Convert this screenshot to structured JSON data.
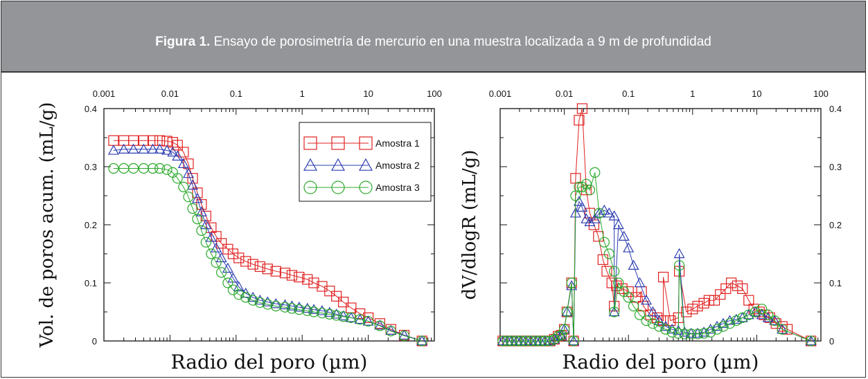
{
  "figure": {
    "caption_bold": "Figura 1.",
    "caption_text": " Ensayo de porosimetría de mercurio en una muestra localizada a 9 m de profundidad"
  },
  "colors": {
    "s1": "#e02020",
    "s2": "#2c3db0",
    "s3": "#2aa82a"
  },
  "chart_data": [
    {
      "type": "scatter",
      "xscale": "log",
      "xlim": [
        0.001,
        100
      ],
      "ylim": [
        0,
        0.4
      ],
      "x_ticks": [
        "0.001",
        "0.01",
        "0.1",
        "1",
        "10",
        "100"
      ],
      "y_ticks": [
        "0",
        "0.1",
        "0.2",
        "0.3",
        "0.4"
      ],
      "xlabel": "Radio del poro (µm)",
      "ylabel": "Vol. de poros acum. (mL/g)",
      "legend_position": "top-right",
      "series": [
        {
          "name": "Amostra 1",
          "marker": "square",
          "color": "#e02020",
          "x": [
            0.0014,
            0.002,
            0.0028,
            0.004,
            0.0055,
            0.007,
            0.009,
            0.011,
            0.013,
            0.016,
            0.019,
            0.022,
            0.026,
            0.03,
            0.035,
            0.042,
            0.05,
            0.06,
            0.075,
            0.09,
            0.11,
            0.14,
            0.18,
            0.23,
            0.3,
            0.4,
            0.55,
            0.7,
            0.9,
            1.2,
            1.5,
            2,
            2.6,
            3.3,
            4.2,
            5.5,
            7.5,
            10,
            15,
            22,
            35,
            65
          ],
          "y": [
            0.345,
            0.345,
            0.345,
            0.345,
            0.345,
            0.345,
            0.344,
            0.342,
            0.337,
            0.325,
            0.305,
            0.28,
            0.255,
            0.235,
            0.215,
            0.195,
            0.18,
            0.168,
            0.158,
            0.15,
            0.143,
            0.137,
            0.132,
            0.128,
            0.124,
            0.12,
            0.117,
            0.113,
            0.11,
            0.106,
            0.1,
            0.094,
            0.086,
            0.077,
            0.067,
            0.057,
            0.047,
            0.04,
            0.03,
            0.02,
            0.01,
            0.0
          ]
        },
        {
          "name": "Amostra 2",
          "marker": "triangle",
          "color": "#2c3db0",
          "x": [
            0.0014,
            0.002,
            0.0028,
            0.004,
            0.0055,
            0.007,
            0.009,
            0.011,
            0.013,
            0.016,
            0.019,
            0.022,
            0.026,
            0.03,
            0.035,
            0.042,
            0.05,
            0.06,
            0.075,
            0.09,
            0.11,
            0.14,
            0.18,
            0.23,
            0.3,
            0.4,
            0.55,
            0.7,
            0.9,
            1.2,
            1.5,
            2,
            2.6,
            3.3,
            4.2,
            5.5,
            7.5,
            10,
            15,
            22,
            35,
            65
          ],
          "y": [
            0.328,
            0.33,
            0.33,
            0.33,
            0.33,
            0.33,
            0.328,
            0.325,
            0.318,
            0.305,
            0.288,
            0.268,
            0.245,
            0.222,
            0.2,
            0.178,
            0.16,
            0.143,
            0.125,
            0.108,
            0.093,
            0.082,
            0.075,
            0.07,
            0.067,
            0.064,
            0.062,
            0.06,
            0.058,
            0.056,
            0.054,
            0.052,
            0.049,
            0.046,
            0.043,
            0.04,
            0.037,
            0.034,
            0.027,
            0.018,
            0.01,
            0.0
          ]
        },
        {
          "name": "Amostra 3",
          "marker": "circle",
          "color": "#2aa82a",
          "x": [
            0.0014,
            0.002,
            0.0028,
            0.004,
            0.0055,
            0.007,
            0.009,
            0.011,
            0.013,
            0.016,
            0.019,
            0.022,
            0.026,
            0.03,
            0.035,
            0.042,
            0.05,
            0.06,
            0.075,
            0.09,
            0.11,
            0.14,
            0.18,
            0.23,
            0.3,
            0.4,
            0.55,
            0.7,
            0.9,
            1.2,
            1.5,
            2,
            2.6,
            3.3,
            4.2,
            5.5,
            7.5,
            10,
            15,
            22,
            35,
            65
          ],
          "y": [
            0.297,
            0.297,
            0.297,
            0.297,
            0.297,
            0.297,
            0.295,
            0.29,
            0.28,
            0.265,
            0.248,
            0.228,
            0.21,
            0.19,
            0.17,
            0.15,
            0.135,
            0.118,
            0.1,
            0.088,
            0.08,
            0.075,
            0.07,
            0.066,
            0.063,
            0.06,
            0.058,
            0.056,
            0.054,
            0.052,
            0.05,
            0.048,
            0.046,
            0.044,
            0.042,
            0.04,
            0.037,
            0.034,
            0.026,
            0.017,
            0.009,
            0.0
          ]
        }
      ]
    },
    {
      "type": "line",
      "xscale": "log",
      "xlim": [
        0.001,
        100
      ],
      "ylim": [
        0,
        0.4
      ],
      "x_ticks": [
        "0.001",
        "0.01",
        "0.1",
        "1",
        "10",
        "100"
      ],
      "y_ticks": [
        "0",
        "0.1",
        "0.2",
        "0.3",
        "0.4"
      ],
      "xlabel": "Radio del poro (µm)",
      "ylabel": "dV/dlogR (mL/g)",
      "series": [
        {
          "name": "Amostra 1",
          "marker": "square",
          "color": "#e02020",
          "x": [
            0.0011,
            0.0013,
            0.0015,
            0.0018,
            0.0021,
            0.0025,
            0.003,
            0.0036,
            0.0042,
            0.005,
            0.006,
            0.007,
            0.008,
            0.009,
            0.01,
            0.011,
            0.013,
            0.015,
            0.017,
            0.019,
            0.022,
            0.025,
            0.029,
            0.034,
            0.04,
            0.046,
            0.055,
            0.065,
            0.08,
            0.1,
            0.13,
            0.17,
            0.22,
            0.28,
            0.35,
            0.45,
            0.6,
            0.8,
            1.0,
            1.2,
            1.5,
            1.8,
            2.2,
            2.7,
            3.3,
            4.0,
            5.0,
            6.0,
            7.5,
            9.0,
            11,
            13,
            16,
            20,
            25,
            30,
            70,
            0.014,
            0.06,
            0.16,
            0.35,
            0.62
          ],
          "y": [
            0,
            0,
            0,
            0,
            0,
            0,
            0,
            0,
            0,
            0,
            0,
            0.003,
            0.008,
            0.01,
            0.02,
            0.05,
            0.1,
            0.28,
            0.38,
            0.4,
            0.26,
            0.22,
            0.2,
            0.18,
            0.14,
            0.12,
            0.1,
            0.095,
            0.09,
            0.085,
            0.075,
            0.06,
            0.045,
            0.04,
            0.035,
            0.035,
            0.04,
            0.05,
            0.055,
            0.06,
            0.065,
            0.07,
            0.07,
            0.08,
            0.09,
            0.1,
            0.095,
            0.09,
            0.07,
            0.055,
            0.05,
            0.045,
            0.04,
            0.03,
            0.025,
            0.02,
            0,
            0,
            0.06,
            0.085,
            0.11,
            0.12
          ]
        },
        {
          "name": "Amostra 2",
          "marker": "triangle",
          "color": "#2c3db0",
          "x": [
            0.0011,
            0.0013,
            0.0015,
            0.0018,
            0.0021,
            0.0025,
            0.003,
            0.0036,
            0.0042,
            0.005,
            0.006,
            0.007,
            0.008,
            0.009,
            0.01,
            0.011,
            0.013,
            0.015,
            0.017,
            0.019,
            0.022,
            0.025,
            0.03,
            0.035,
            0.042,
            0.05,
            0.06,
            0.07,
            0.085,
            0.1,
            0.12,
            0.15,
            0.19,
            0.24,
            0.3,
            0.38,
            0.48,
            0.6,
            0.75,
            0.95,
            1.2,
            1.5,
            1.9,
            2.4,
            3,
            3.8,
            4.8,
            6,
            7.5,
            9.5,
            12,
            15,
            19,
            25,
            70,
            0.014,
            0.06,
            0.62
          ],
          "y": [
            0,
            0,
            0,
            0,
            0,
            0,
            0,
            0,
            0,
            0,
            0,
            0.003,
            0.008,
            0.01,
            0.02,
            0.05,
            0.095,
            0.22,
            0.24,
            0.23,
            0.21,
            0.205,
            0.21,
            0.22,
            0.225,
            0.22,
            0.215,
            0.2,
            0.18,
            0.16,
            0.13,
            0.1,
            0.07,
            0.05,
            0.035,
            0.025,
            0.02,
            0.018,
            0.015,
            0.013,
            0.013,
            0.015,
            0.02,
            0.025,
            0.03,
            0.035,
            0.037,
            0.04,
            0.045,
            0.05,
            0.045,
            0.04,
            0.035,
            0.02,
            0,
            0,
            0.05,
            0.15
          ]
        },
        {
          "name": "Amostra 3",
          "marker": "circle",
          "color": "#2aa82a",
          "x": [
            0.0011,
            0.0013,
            0.0015,
            0.0018,
            0.0021,
            0.0025,
            0.003,
            0.0036,
            0.0042,
            0.005,
            0.006,
            0.007,
            0.008,
            0.009,
            0.01,
            0.011,
            0.013,
            0.015,
            0.017,
            0.019,
            0.022,
            0.025,
            0.03,
            0.035,
            0.042,
            0.05,
            0.06,
            0.07,
            0.085,
            0.1,
            0.12,
            0.15,
            0.19,
            0.24,
            0.3,
            0.38,
            0.48,
            0.6,
            0.75,
            0.95,
            1.2,
            1.5,
            1.9,
            2.4,
            3,
            3.8,
            4.8,
            6,
            7.5,
            9.5,
            12,
            15,
            19,
            25,
            70,
            0.014,
            0.06,
            0.62
          ],
          "y": [
            0,
            0,
            0,
            0,
            0,
            0,
            0,
            0,
            0,
            0,
            0,
            0.003,
            0.008,
            0.01,
            0.02,
            0.05,
            0.1,
            0.25,
            0.265,
            0.265,
            0.27,
            0.26,
            0.29,
            0.22,
            0.17,
            0.15,
            0.12,
            0.1,
            0.085,
            0.075,
            0.06,
            0.045,
            0.035,
            0.03,
            0.025,
            0.02,
            0.015,
            0.013,
            0.012,
            0.012,
            0.012,
            0.013,
            0.015,
            0.02,
            0.025,
            0.03,
            0.035,
            0.04,
            0.045,
            0.05,
            0.055,
            0.045,
            0.035,
            0.02,
            0,
            0,
            0.05,
            0.13
          ]
        }
      ]
    }
  ]
}
